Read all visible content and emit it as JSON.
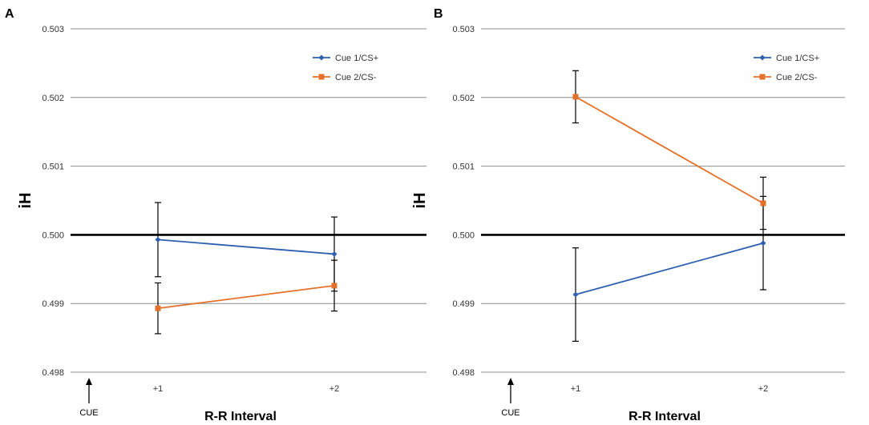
{
  "chart_data": [
    {
      "type": "line",
      "panel_label": "A",
      "categories": [
        "+1",
        "+2"
      ],
      "ylim": [
        0.498,
        0.503
      ],
      "yticks": [
        "0.498",
        "0.499",
        "0.500",
        "0.501",
        "0.502",
        "0.503"
      ],
      "ylabel": "iH",
      "xlabel": "R-R Interval",
      "cue_label": "CUE",
      "reference_line": 0.5,
      "grid": true,
      "legend_position": "top-right",
      "series": [
        {
          "name": "Cue 1/CS+",
          "color": "#2e5fae",
          "marker": "diamond",
          "values": [
            0.49993,
            0.49972
          ],
          "error": [
            0.00054,
            0.00054
          ]
        },
        {
          "name": "Cue 2/CS-",
          "color": "#e4712a",
          "marker": "square",
          "values": [
            0.49893,
            0.49926
          ],
          "error": [
            0.00037,
            0.00037
          ]
        }
      ]
    },
    {
      "type": "line",
      "panel_label": "B",
      "categories": [
        "+1",
        "+2"
      ],
      "ylim": [
        0.498,
        0.503
      ],
      "yticks": [
        "0.498",
        "0.499",
        "0.500",
        "0.501",
        "0.502",
        "0.503"
      ],
      "ylabel": "iH",
      "xlabel": "R-R Interval",
      "cue_label": "CUE",
      "reference_line": 0.5,
      "grid": true,
      "legend_position": "top-right",
      "series": [
        {
          "name": "Cue 1/CS+",
          "color": "#2e5fae",
          "marker": "diamond",
          "values": [
            0.49913,
            0.49988
          ],
          "error": [
            0.00068,
            0.00068
          ]
        },
        {
          "name": "Cue 2/CS-",
          "color": "#e4712a",
          "marker": "square",
          "values": [
            0.50201,
            0.50046
          ],
          "error": [
            0.00038,
            0.00038
          ]
        }
      ]
    }
  ]
}
